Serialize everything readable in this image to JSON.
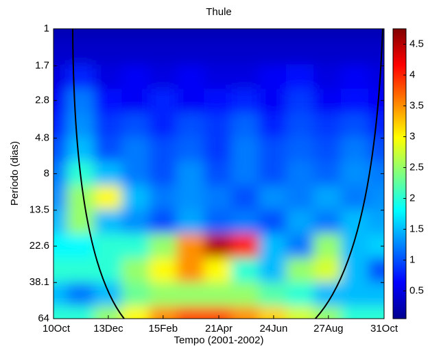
{
  "chart_data": {
    "type": "heatmap",
    "title": "Thule",
    "xlabel": "Tempo (2001-2002)",
    "ylabel": "Período (dias)",
    "xlim": [
      0,
      386
    ],
    "xticks": [
      {
        "value": 0,
        "label": "10Oct"
      },
      {
        "value": 64,
        "label": "13Dec"
      },
      {
        "value": 128,
        "label": "15Feb"
      },
      {
        "value": 193,
        "label": "21Apr"
      },
      {
        "value": 257,
        "label": "24Jun"
      },
      {
        "value": 321,
        "label": "27Aug"
      },
      {
        "value": 386,
        "label": "31Oct"
      }
    ],
    "ylim": [
      1,
      64
    ],
    "y_log": true,
    "y_reversed": true,
    "yticks": [
      1,
      1.7,
      2.8,
      4.8,
      8,
      13.5,
      22.6,
      38.1,
      64
    ],
    "x": [
      0,
      32,
      64,
      96,
      128,
      160,
      192,
      224,
      256,
      288,
      320,
      352,
      384
    ],
    "y": [
      1,
      1.41,
      2,
      2.83,
      4,
      5.66,
      8,
      11.3,
      16,
      22.6,
      32,
      45.3,
      64
    ],
    "z": [
      [
        0.3,
        0.3,
        0.3,
        0.3,
        0.3,
        0.3,
        0.3,
        0.3,
        0.3,
        0.3,
        0.3,
        0.3,
        0.3
      ],
      [
        0.4,
        0.4,
        0.4,
        0.4,
        0.4,
        0.4,
        0.4,
        0.4,
        0.4,
        0.4,
        0.4,
        0.4,
        0.4
      ],
      [
        0.5,
        0.8,
        0.5,
        0.6,
        0.5,
        0.6,
        0.5,
        0.5,
        0.6,
        0.7,
        0.5,
        0.6,
        0.5
      ],
      [
        0.6,
        1.2,
        0.7,
        0.6,
        0.8,
        0.6,
        0.7,
        0.8,
        0.6,
        0.9,
        0.6,
        0.7,
        0.6
      ],
      [
        0.8,
        1.3,
        0.9,
        1.0,
        0.8,
        1.0,
        0.9,
        1.1,
        0.8,
        1.0,
        0.9,
        1.0,
        0.8
      ],
      [
        1.0,
        1.5,
        1.0,
        1.2,
        1.0,
        1.1,
        0.9,
        1.2,
        1.0,
        1.1,
        1.0,
        1.2,
        1.0
      ],
      [
        1.2,
        2.0,
        1.5,
        1.2,
        1.0,
        1.3,
        1.0,
        1.2,
        1.0,
        1.2,
        1.1,
        1.3,
        1.2
      ],
      [
        1.3,
        2.5,
        3.0,
        1.5,
        1.2,
        1.3,
        1.2,
        1.0,
        1.3,
        1.2,
        1.4,
        1.2,
        1.3
      ],
      [
        1.5,
        2.5,
        1.5,
        1.3,
        1.0,
        1.4,
        1.1,
        1.2,
        1.0,
        1.4,
        1.2,
        1.5,
        1.4
      ],
      [
        1.8,
        1.8,
        2.0,
        2.0,
        2.5,
        3.5,
        4.5,
        4.0,
        1.5,
        1.2,
        2.5,
        1.5,
        1.6
      ],
      [
        2.0,
        2.0,
        2.0,
        2.5,
        3.0,
        3.5,
        3.0,
        2.0,
        1.5,
        2.5,
        2.8,
        1.5,
        1.0
      ],
      [
        1.5,
        1.2,
        1.5,
        2.3,
        2.5,
        2.5,
        2.5,
        2.5,
        2.2,
        2.0,
        1.5,
        1.5,
        1.5
      ],
      [
        2.0,
        2.0,
        2.5,
        3.0,
        3.5,
        3.8,
        3.8,
        3.5,
        3.2,
        2.8,
        2.5,
        2.0,
        2.0
      ]
    ],
    "colormap": "jet",
    "clim": [
      0.05,
      4.75
    ],
    "cticks": [
      0.5,
      1,
      1.5,
      2,
      2.5,
      3,
      3.5,
      4,
      4.5
    ]
  }
}
